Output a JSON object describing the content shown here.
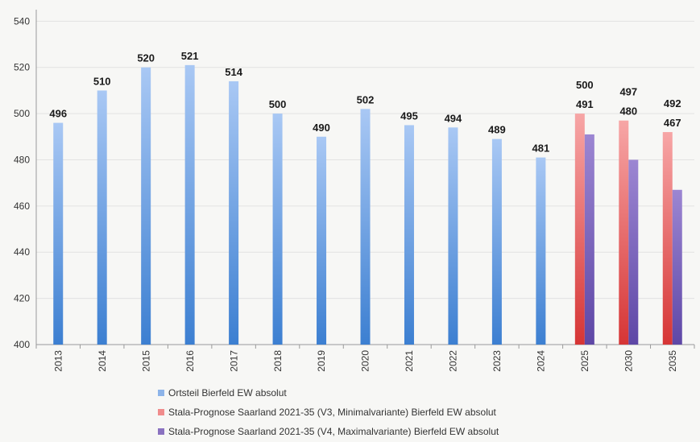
{
  "chart_data": {
    "type": "bar",
    "categories": [
      "2013",
      "2014",
      "2015",
      "2016",
      "2017",
      "2018",
      "2019",
      "2020",
      "2021",
      "2022",
      "2023",
      "2024",
      "2025",
      "2030",
      "2035"
    ],
    "series": [
      {
        "name": "Ortsteil Bierfeld EW absolut",
        "color": "#8db4e9",
        "values": [
          496,
          510,
          520,
          521,
          514,
          500,
          490,
          502,
          495,
          494,
          489,
          481,
          null,
          null,
          null
        ]
      },
      {
        "name": "Stala-Prognose Saarland 2021-35 (V3, Minimalvariante) Bierfeld EW absolut",
        "color": "#f08c8c",
        "values": [
          null,
          null,
          null,
          null,
          null,
          null,
          null,
          null,
          null,
          null,
          null,
          null,
          500,
          497,
          492
        ]
      },
      {
        "name": "Stala-Prognose Saarland 2021-35 (V4, Maximalvariante) Bierfeld EW absolut",
        "color": "#8a72c0",
        "values": [
          null,
          null,
          null,
          null,
          null,
          null,
          null,
          null,
          null,
          null,
          null,
          null,
          491,
          480,
          467
        ]
      }
    ],
    "yticks": [
      400,
      420,
      440,
      460,
      480,
      500,
      520,
      540
    ],
    "ylim": [
      400,
      545
    ],
    "grid": true,
    "legend_position": "bottom"
  }
}
